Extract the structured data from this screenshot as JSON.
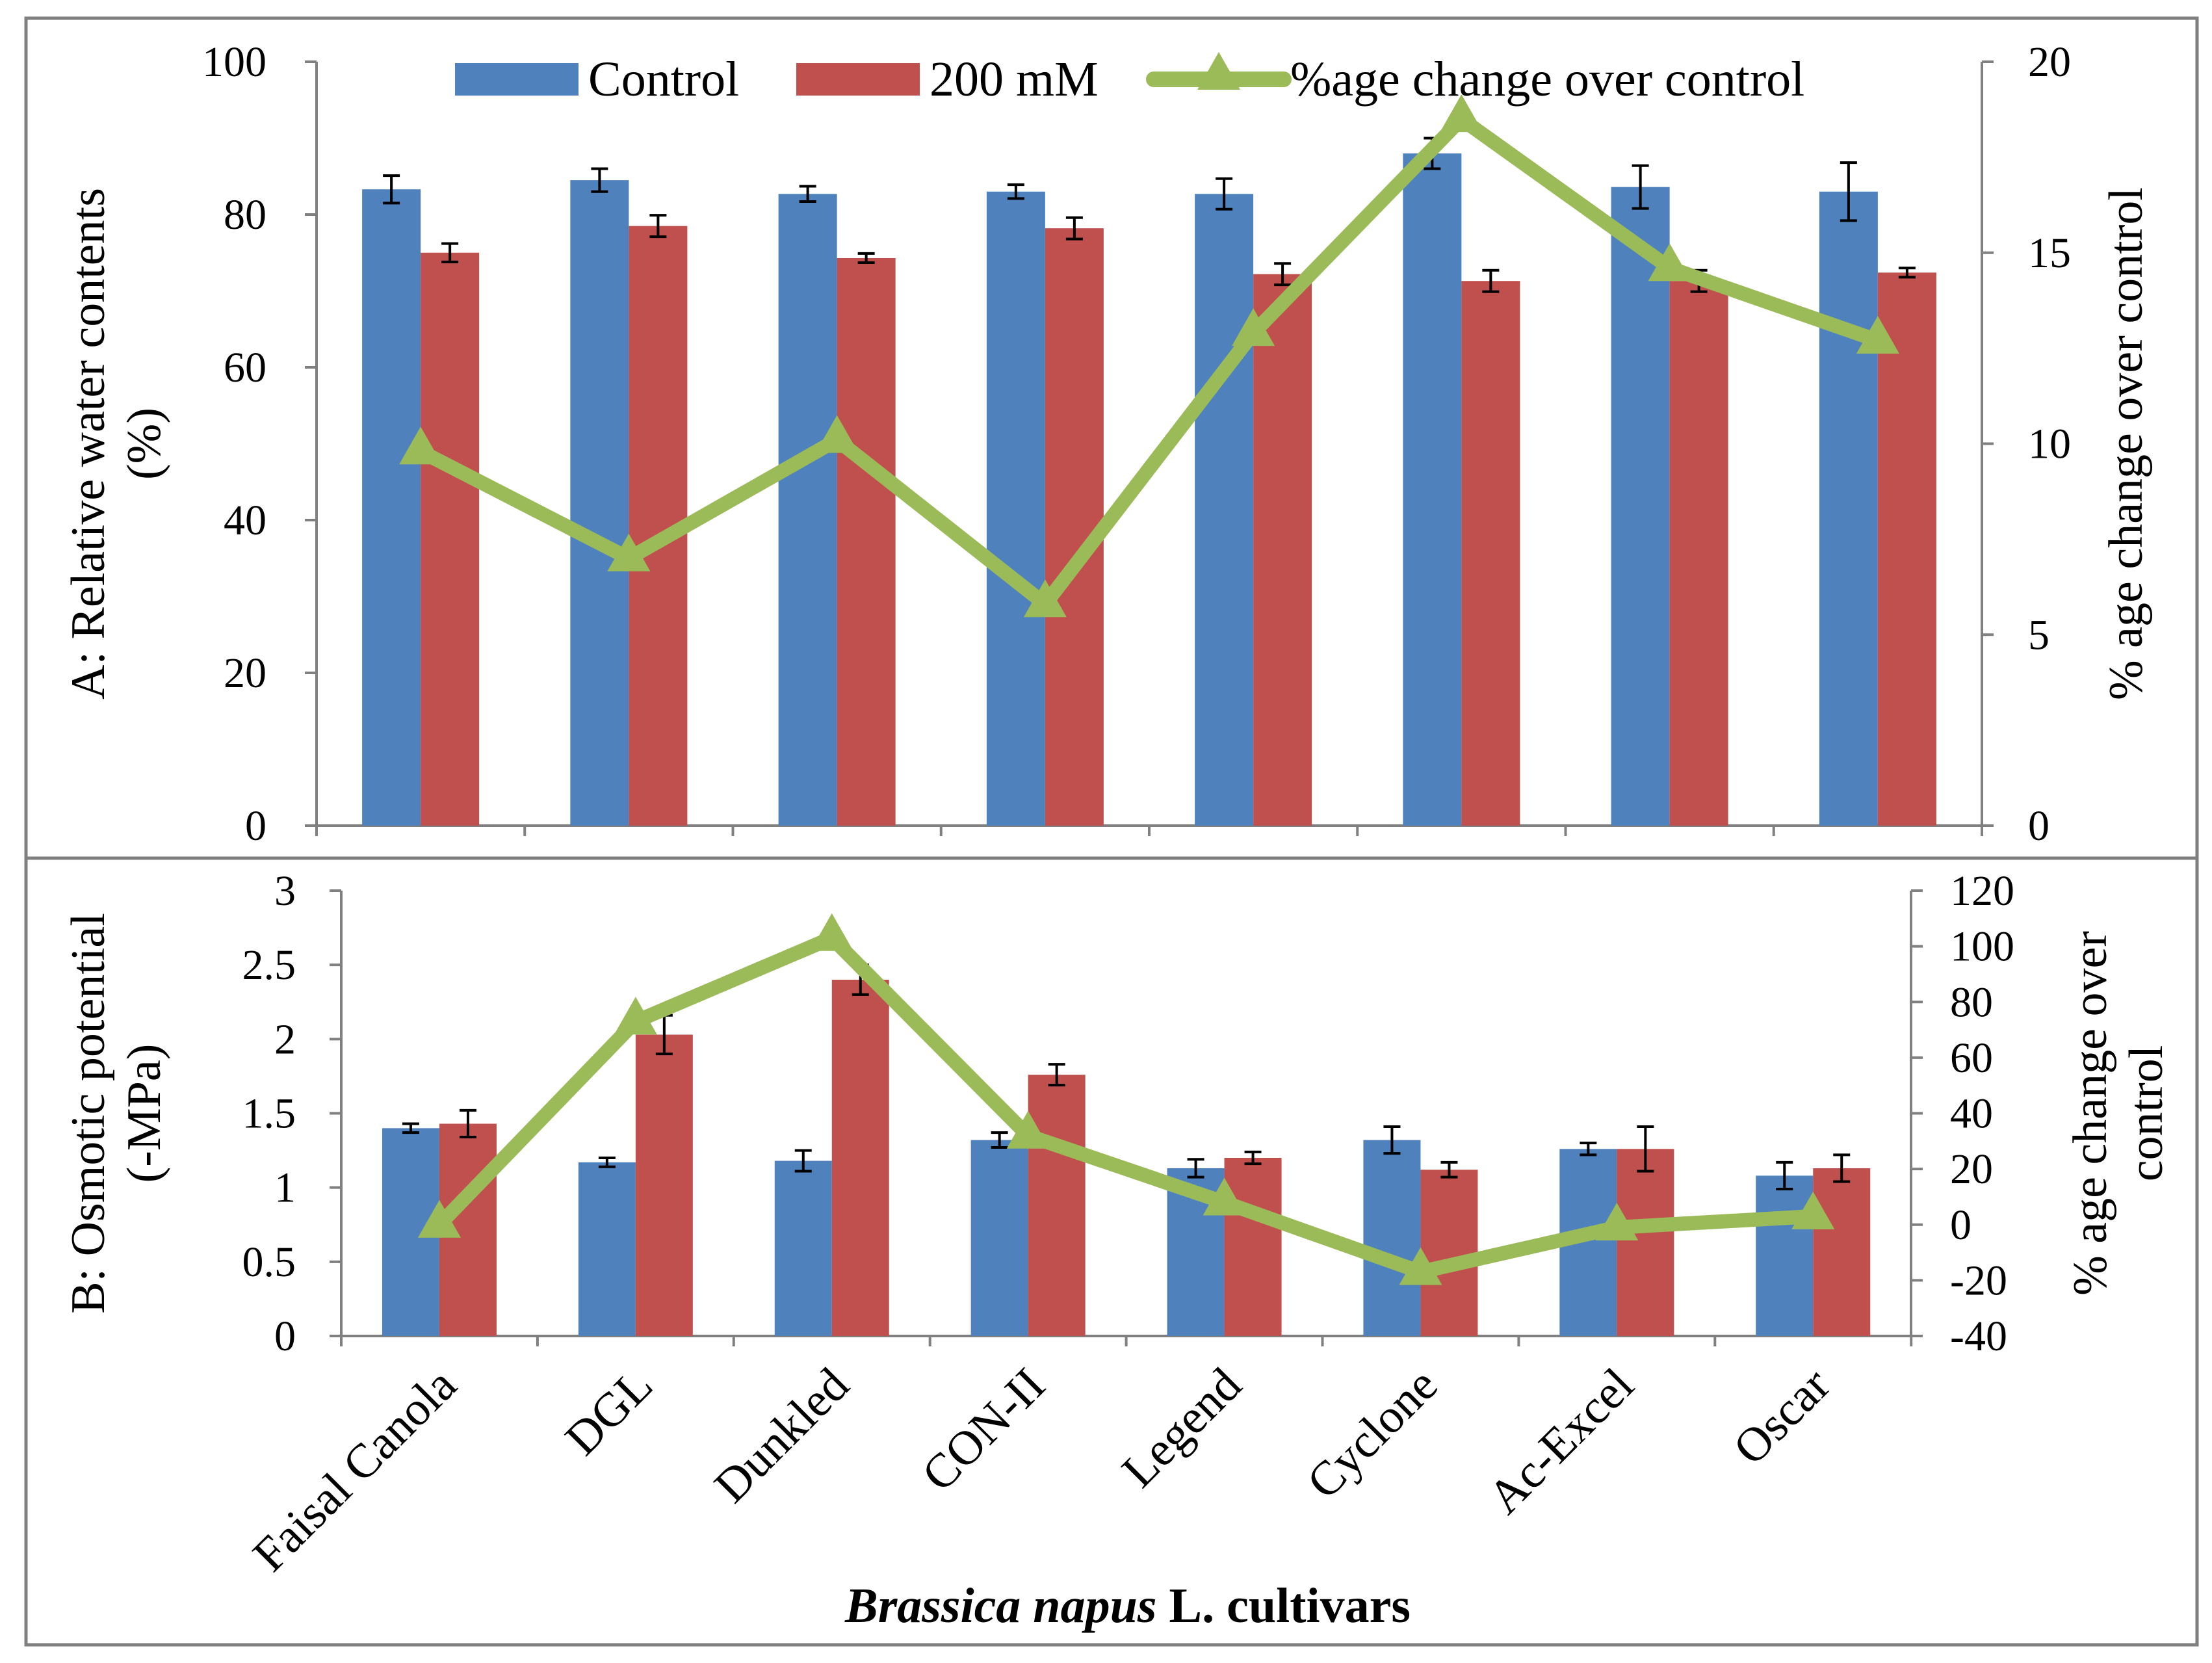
{
  "colors": {
    "control": "#4F81BD",
    "salt": "#C0504D",
    "change": "#9BBB59",
    "axis": "#808080",
    "frame": "#7F7F7F"
  },
  "legend": {
    "control_label": "Control",
    "salt_label": "200 mM",
    "change_label": "%age change over control"
  },
  "x_axis": {
    "title_italic": "Brassica napus",
    "title_rest": " L. cultivars"
  },
  "chart_data": [
    {
      "id": "A",
      "type": "bar",
      "categories": [
        "Faisal Canola",
        "DGL",
        "Dunkled",
        "CON-II",
        "Legend",
        "Cyclone",
        "Ac-Excel",
        "Oscar"
      ],
      "ylabel": "A: Relative water contents (%)",
      "ylabel_lines": [
        "A: Relative water contents",
        "(%)"
      ],
      "ylim": [
        0,
        100
      ],
      "yticks": [
        0,
        20,
        40,
        60,
        80,
        100
      ],
      "y2label": "% age change over control",
      "y2label_lines": [
        "% age change over control"
      ],
      "y2lim": [
        0,
        20
      ],
      "y2ticks": [
        0,
        5,
        10,
        15,
        20
      ],
      "series": [
        {
          "name": "Control",
          "axis": "left",
          "kind": "bar",
          "values": [
            83.3,
            84.5,
            82.7,
            83.0,
            82.7,
            88.0,
            83.6,
            83.0
          ],
          "errors": [
            1.8,
            1.5,
            1.0,
            0.9,
            2.0,
            2.0,
            2.8,
            3.8
          ]
        },
        {
          "name": "200 mM",
          "axis": "left",
          "kind": "bar",
          "values": [
            75.0,
            78.5,
            74.3,
            78.2,
            72.2,
            71.3,
            71.3,
            72.4
          ],
          "errors": [
            1.2,
            1.4,
            0.6,
            1.4,
            1.4,
            1.4,
            1.4,
            0.6
          ]
        },
        {
          "name": "%age change over control",
          "axis": "right",
          "kind": "line",
          "values": [
            9.8,
            7.0,
            10.1,
            5.8,
            12.9,
            18.5,
            14.6,
            12.7
          ]
        }
      ]
    },
    {
      "id": "B",
      "type": "bar",
      "categories": [
        "Faisal Canola",
        "DGL",
        "Dunkled",
        "CON-II",
        "Legend",
        "Cyclone",
        "Ac-Excel",
        "Oscar"
      ],
      "ylabel": "B: Osmotic potential (-MPa)",
      "ylabel_lines": [
        "B: Osmotic potential",
        "(-MPa)"
      ],
      "ylim": [
        0,
        3
      ],
      "yticks": [
        "0",
        "0.5",
        "1",
        "1.5",
        "2",
        "2.5",
        "3"
      ],
      "y2label": "% age change over control",
      "y2label_lines": [
        "% age change over",
        "control"
      ],
      "y2lim": [
        -40,
        120
      ],
      "y2ticks": [
        -40,
        -20,
        0,
        20,
        40,
        60,
        80,
        100,
        120
      ],
      "series": [
        {
          "name": "Control",
          "axis": "left",
          "kind": "bar",
          "values": [
            1.4,
            1.17,
            1.18,
            1.32,
            1.13,
            1.32,
            1.26,
            1.08
          ],
          "errors": [
            0.03,
            0.03,
            0.07,
            0.05,
            0.06,
            0.09,
            0.04,
            0.09
          ]
        },
        {
          "name": "200 mM",
          "axis": "left",
          "kind": "bar",
          "values": [
            1.43,
            2.03,
            2.4,
            1.76,
            1.2,
            1.12,
            1.26,
            1.13
          ],
          "errors": [
            0.09,
            0.13,
            0.1,
            0.07,
            0.04,
            0.05,
            0.15,
            0.09
          ]
        },
        {
          "name": "%age change over control",
          "axis": "right",
          "kind": "line",
          "values": [
            0,
            73,
            103,
            32,
            8,
            -17,
            -1,
            3
          ]
        }
      ]
    }
  ]
}
